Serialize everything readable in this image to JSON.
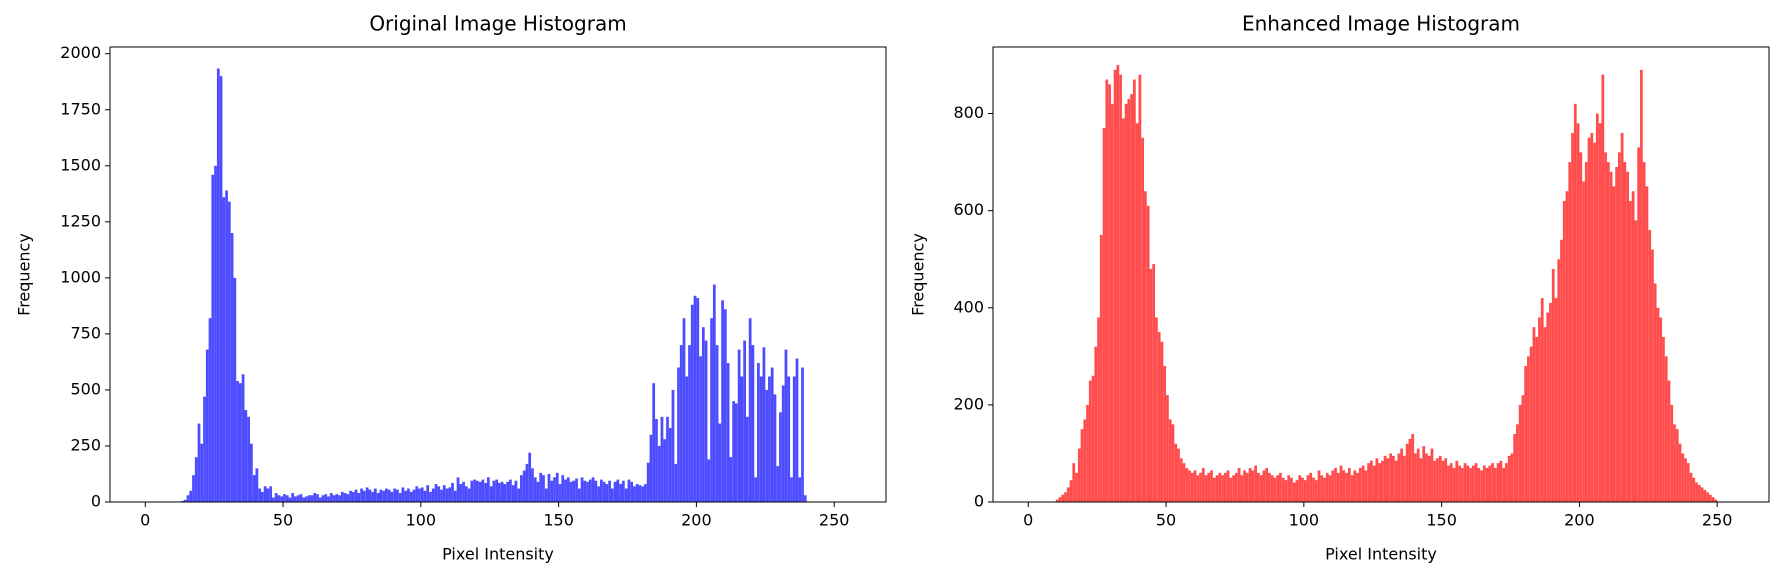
{
  "chart_data": [
    {
      "type": "histogram",
      "title": "Original Image Histogram",
      "x_label": "Pixel Intensity",
      "y_label": "Frequency",
      "color": "#4d4dff",
      "xlim": [
        -12.8,
        268.8
      ],
      "xticks": [
        0,
        50,
        100,
        150,
        200,
        250
      ],
      "ylim": [
        0,
        2030
      ],
      "yticks": [
        0,
        250,
        500,
        750,
        1000,
        1250,
        1500,
        1750,
        2000
      ],
      "bins": [
        0,
        1,
        2,
        3,
        4,
        5,
        6,
        7,
        8,
        9,
        10,
        11,
        12,
        13,
        14,
        15,
        16,
        17,
        18,
        19,
        20,
        21,
        22,
        23,
        24,
        25,
        26,
        27,
        28,
        29,
        30,
        31,
        32,
        33,
        34,
        35,
        36,
        37,
        38,
        39,
        40,
        41,
        42,
        43,
        44,
        45,
        46,
        47,
        48,
        49,
        50,
        51,
        52,
        53,
        54,
        55,
        56,
        57,
        58,
        59,
        60,
        61,
        62,
        63,
        64,
        65,
        66,
        67,
        68,
        69,
        70,
        71,
        72,
        73,
        74,
        75,
        76,
        77,
        78,
        79,
        80,
        81,
        82,
        83,
        84,
        85,
        86,
        87,
        88,
        89,
        90,
        91,
        92,
        93,
        94,
        95,
        96,
        97,
        98,
        99,
        100,
        101,
        102,
        103,
        104,
        105,
        106,
        107,
        108,
        109,
        110,
        111,
        112,
        113,
        114,
        115,
        116,
        117,
        118,
        119,
        120,
        121,
        122,
        123,
        124,
        125,
        126,
        127,
        128,
        129,
        130,
        131,
        132,
        133,
        134,
        135,
        136,
        137,
        138,
        139,
        140,
        141,
        142,
        143,
        144,
        145,
        146,
        147,
        148,
        149,
        150,
        151,
        152,
        153,
        154,
        155,
        156,
        157,
        158,
        159,
        160,
        161,
        162,
        163,
        164,
        165,
        166,
        167,
        168,
        169,
        170,
        171,
        172,
        173,
        174,
        175,
        176,
        177,
        178,
        179,
        180,
        181,
        182,
        183,
        184,
        185,
        186,
        187,
        188,
        189,
        190,
        191,
        192,
        193,
        194,
        195,
        196,
        197,
        198,
        199,
        200,
        201,
        202,
        203,
        204,
        205,
        206,
        207,
        208,
        209,
        210,
        211,
        212,
        213,
        214,
        215,
        216,
        217,
        218,
        219,
        220,
        221,
        222,
        223,
        224,
        225,
        226,
        227,
        228,
        229,
        230,
        231,
        232,
        233,
        234,
        235,
        236,
        237,
        238,
        239,
        240,
        241,
        242,
        243,
        244,
        245,
        246,
        247,
        248,
        249,
        250,
        251,
        252,
        253,
        254,
        255,
        256
      ],
      "values": [
        0,
        0,
        0,
        0,
        0,
        0,
        0,
        0,
        0,
        0,
        0,
        0,
        0,
        5,
        10,
        30,
        50,
        120,
        200,
        350,
        260,
        470,
        680,
        820,
        1460,
        1500,
        1934,
        1900,
        1360,
        1390,
        1340,
        1200,
        1000,
        540,
        530,
        570,
        410,
        380,
        260,
        120,
        150,
        60,
        45,
        70,
        60,
        70,
        20,
        40,
        30,
        25,
        35,
        30,
        20,
        40,
        25,
        30,
        35,
        20,
        25,
        30,
        30,
        40,
        35,
        20,
        30,
        35,
        25,
        40,
        30,
        35,
        30,
        45,
        40,
        35,
        50,
        45,
        55,
        40,
        60,
        50,
        65,
        55,
        45,
        60,
        40,
        55,
        50,
        60,
        55,
        45,
        60,
        55,
        40,
        65,
        50,
        60,
        45,
        55,
        70,
        60,
        65,
        50,
        75,
        45,
        60,
        80,
        70,
        55,
        75,
        60,
        65,
        85,
        50,
        110,
        80,
        90,
        70,
        60,
        95,
        100,
        95,
        90,
        100,
        85,
        110,
        70,
        95,
        100,
        85,
        90,
        80,
        90,
        100,
        75,
        95,
        60,
        120,
        140,
        170,
        220,
        150,
        110,
        90,
        130,
        120,
        60,
        125,
        95,
        110,
        130,
        80,
        120,
        100,
        110,
        90,
        95,
        105,
        60,
        110,
        95,
        90,
        100,
        110,
        95,
        70,
        100,
        90,
        80,
        95,
        60,
        90,
        100,
        80,
        95,
        60,
        100,
        90,
        70,
        80,
        75,
        70,
        80,
        175,
        300,
        530,
        370,
        250,
        380,
        280,
        380,
        330,
        500,
        170,
        600,
        700,
        820,
        560,
        700,
        880,
        920,
        910,
        650,
        780,
        720,
        190,
        820,
        970,
        700,
        350,
        900,
        860,
        620,
        200,
        450,
        440,
        680,
        560,
        720,
        380,
        820,
        700,
        110,
        620,
        560,
        690,
        500,
        560,
        600,
        480,
        160,
        400,
        520,
        680,
        560,
        110,
        560,
        640,
        110,
        600,
        30,
        0,
        0,
        0,
        0,
        0,
        0,
        0,
        0,
        0,
        0,
        0,
        0,
        0,
        0,
        0,
        0
      ]
    },
    {
      "type": "histogram",
      "title": "Enhanced Image Histogram",
      "x_label": "Pixel Intensity",
      "y_label": "Frequency",
      "color": "#ff4d4d",
      "xlim": [
        -12.8,
        268.8
      ],
      "xticks": [
        0,
        50,
        100,
        150,
        200,
        250
      ],
      "ylim": [
        0,
        937
      ],
      "yticks": [
        0,
        200,
        400,
        600,
        800
      ],
      "bins": [
        0,
        1,
        2,
        3,
        4,
        5,
        6,
        7,
        8,
        9,
        10,
        11,
        12,
        13,
        14,
        15,
        16,
        17,
        18,
        19,
        20,
        21,
        22,
        23,
        24,
        25,
        26,
        27,
        28,
        29,
        30,
        31,
        32,
        33,
        34,
        35,
        36,
        37,
        38,
        39,
        40,
        41,
        42,
        43,
        44,
        45,
        46,
        47,
        48,
        49,
        50,
        51,
        52,
        53,
        54,
        55,
        56,
        57,
        58,
        59,
        60,
        61,
        62,
        63,
        64,
        65,
        66,
        67,
        68,
        69,
        70,
        71,
        72,
        73,
        74,
        75,
        76,
        77,
        78,
        79,
        80,
        81,
        82,
        83,
        84,
        85,
        86,
        87,
        88,
        89,
        90,
        91,
        92,
        93,
        94,
        95,
        96,
        97,
        98,
        99,
        100,
        101,
        102,
        103,
        104,
        105,
        106,
        107,
        108,
        109,
        110,
        111,
        112,
        113,
        114,
        115,
        116,
        117,
        118,
        119,
        120,
        121,
        122,
        123,
        124,
        125,
        126,
        127,
        128,
        129,
        130,
        131,
        132,
        133,
        134,
        135,
        136,
        137,
        138,
        139,
        140,
        141,
        142,
        143,
        144,
        145,
        146,
        147,
        148,
        149,
        150,
        151,
        152,
        153,
        154,
        155,
        156,
        157,
        158,
        159,
        160,
        161,
        162,
        163,
        164,
        165,
        166,
        167,
        168,
        169,
        170,
        171,
        172,
        173,
        174,
        175,
        176,
        177,
        178,
        179,
        180,
        181,
        182,
        183,
        184,
        185,
        186,
        187,
        188,
        189,
        190,
        191,
        192,
        193,
        194,
        195,
        196,
        197,
        198,
        199,
        200,
        201,
        202,
        203,
        204,
        205,
        206,
        207,
        208,
        209,
        210,
        211,
        212,
        213,
        214,
        215,
        216,
        217,
        218,
        219,
        220,
        221,
        222,
        223,
        224,
        225,
        226,
        227,
        228,
        229,
        230,
        231,
        232,
        233,
        234,
        235,
        236,
        237,
        238,
        239,
        240,
        241,
        242,
        243,
        244,
        245,
        246,
        247,
        248,
        249,
        250,
        251,
        252,
        253,
        254,
        255,
        256
      ],
      "values": [
        0,
        0,
        0,
        0,
        0,
        0,
        0,
        0,
        0,
        0,
        5,
        10,
        15,
        20,
        30,
        45,
        80,
        60,
        110,
        150,
        170,
        200,
        250,
        260,
        320,
        380,
        550,
        770,
        870,
        860,
        820,
        890,
        900,
        880,
        790,
        820,
        830,
        840,
        870,
        780,
        880,
        750,
        640,
        610,
        480,
        490,
        380,
        350,
        330,
        280,
        220,
        170,
        160,
        120,
        110,
        90,
        80,
        70,
        65,
        60,
        65,
        55,
        60,
        70,
        55,
        60,
        65,
        50,
        55,
        60,
        55,
        60,
        65,
        50,
        55,
        60,
        70,
        55,
        65,
        60,
        70,
        65,
        75,
        60,
        55,
        65,
        70,
        60,
        55,
        50,
        55,
        60,
        50,
        45,
        55,
        50,
        40,
        45,
        55,
        50,
        45,
        55,
        60,
        50,
        45,
        65,
        55,
        50,
        60,
        55,
        65,
        70,
        60,
        75,
        65,
        60,
        70,
        55,
        65,
        60,
        70,
        75,
        65,
        80,
        85,
        75,
        90,
        80,
        85,
        95,
        90,
        100,
        95,
        85,
        100,
        110,
        95,
        120,
        130,
        140,
        100,
        110,
        90,
        115,
        100,
        95,
        110,
        85,
        90,
        95,
        85,
        90,
        75,
        80,
        70,
        85,
        75,
        70,
        80,
        75,
        70,
        75,
        80,
        70,
        65,
        75,
        70,
        75,
        80,
        70,
        80,
        85,
        70,
        80,
        95,
        100,
        140,
        160,
        200,
        220,
        280,
        300,
        320,
        360,
        340,
        380,
        420,
        360,
        390,
        410,
        480,
        420,
        500,
        540,
        620,
        640,
        700,
        760,
        820,
        780,
        720,
        660,
        700,
        750,
        760,
        740,
        800,
        780,
        880,
        720,
        700,
        680,
        650,
        690,
        720,
        760,
        700,
        680,
        620,
        640,
        580,
        730,
        890,
        700,
        650,
        560,
        520,
        450,
        400,
        380,
        340,
        300,
        250,
        200,
        160,
        150,
        120,
        100,
        90,
        80,
        60,
        50,
        40,
        35,
        30,
        25,
        20,
        15,
        10,
        5,
        0,
        0,
        0,
        0,
        0,
        0
      ]
    }
  ]
}
